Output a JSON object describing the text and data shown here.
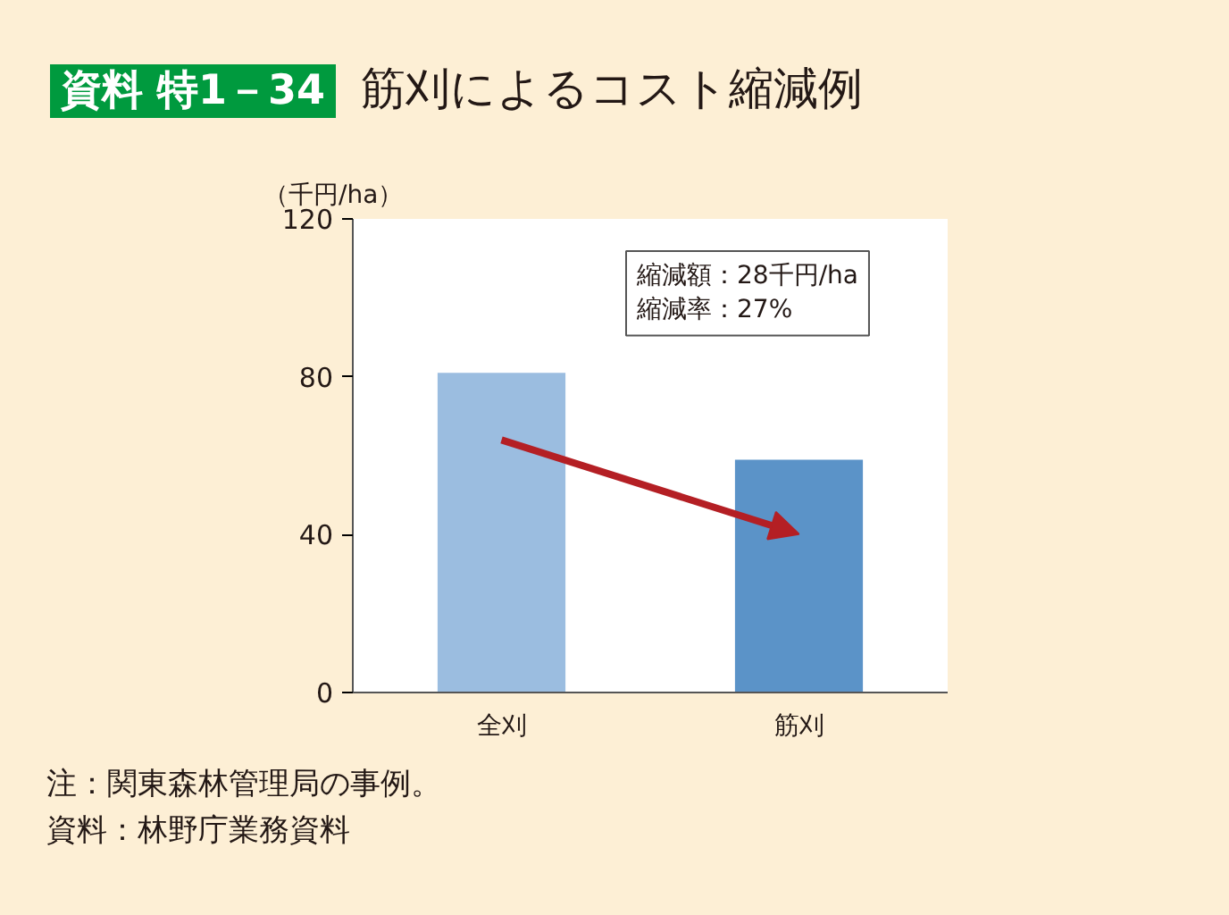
{
  "chart_data": {
    "type": "bar",
    "title": "筋刈によるコスト縮減例",
    "subtitle": "資料 特1－34",
    "ylabel": "（千円/ha）",
    "categories": [
      "全刈",
      "筋刈"
    ],
    "values": [
      81,
      59
    ],
    "colors": [
      "#9bbde0",
      "#5b93c8"
    ],
    "ylim": [
      0,
      120
    ],
    "yticks": [
      0,
      40,
      80,
      120
    ],
    "grid": false,
    "annotations": [
      "縮減額：28千円/ha",
      "縮減率：27%",
      "注：関東森林管理局の事例。",
      "資料：林野庁業務資料"
    ]
  }
}
